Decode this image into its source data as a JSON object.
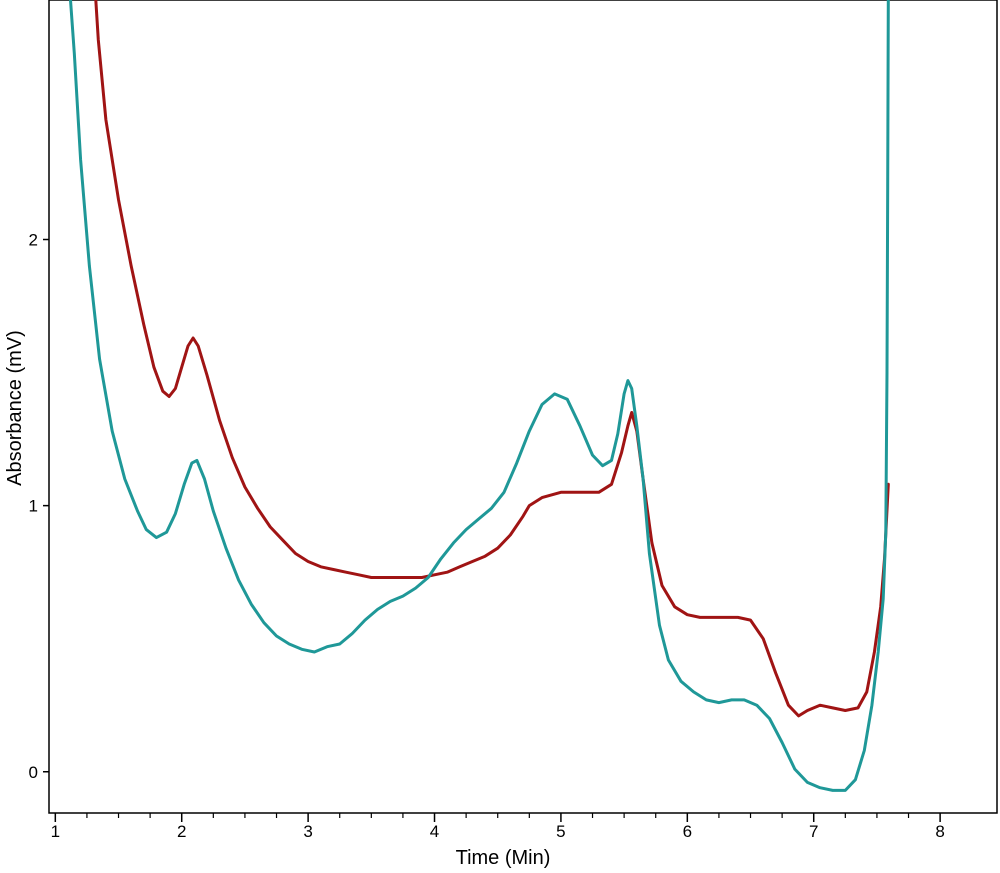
{
  "chart_data": {
    "type": "line",
    "title": "",
    "xlabel": "Time (Min)",
    "ylabel": "Absorbance (mV)",
    "xlim": [
      0.95,
      8.45
    ],
    "ylim": [
      -0.155,
      2.9
    ],
    "x_ticks": [
      1,
      2,
      3,
      4,
      5,
      6,
      7,
      8
    ],
    "y_ticks": [
      0,
      1,
      2
    ],
    "minor_x_step": 0.25,
    "grid": false,
    "legend": "none",
    "series": [
      {
        "color": "#a01414",
        "points": [
          [
            1.32,
            2.9
          ],
          [
            1.34,
            2.75
          ],
          [
            1.4,
            2.45
          ],
          [
            1.5,
            2.15
          ],
          [
            1.6,
            1.9
          ],
          [
            1.7,
            1.68
          ],
          [
            1.78,
            1.52
          ],
          [
            1.85,
            1.43
          ],
          [
            1.9,
            1.41
          ],
          [
            1.95,
            1.44
          ],
          [
            2.0,
            1.52
          ],
          [
            2.05,
            1.6
          ],
          [
            2.09,
            1.63
          ],
          [
            2.13,
            1.6
          ],
          [
            2.2,
            1.49
          ],
          [
            2.3,
            1.32
          ],
          [
            2.4,
            1.18
          ],
          [
            2.5,
            1.07
          ],
          [
            2.6,
            0.99
          ],
          [
            2.7,
            0.92
          ],
          [
            2.8,
            0.87
          ],
          [
            2.9,
            0.82
          ],
          [
            3.0,
            0.79
          ],
          [
            3.1,
            0.77
          ],
          [
            3.2,
            0.76
          ],
          [
            3.3,
            0.75
          ],
          [
            3.4,
            0.74
          ],
          [
            3.5,
            0.73
          ],
          [
            3.6,
            0.73
          ],
          [
            3.7,
            0.73
          ],
          [
            3.8,
            0.73
          ],
          [
            3.9,
            0.73
          ],
          [
            4.0,
            0.74
          ],
          [
            4.1,
            0.75
          ],
          [
            4.2,
            0.77
          ],
          [
            4.3,
            0.79
          ],
          [
            4.4,
            0.81
          ],
          [
            4.5,
            0.84
          ],
          [
            4.6,
            0.89
          ],
          [
            4.7,
            0.96
          ],
          [
            4.75,
            1.0
          ],
          [
            4.85,
            1.03
          ],
          [
            5.0,
            1.05
          ],
          [
            5.1,
            1.05
          ],
          [
            5.2,
            1.05
          ],
          [
            5.3,
            1.05
          ],
          [
            5.4,
            1.08
          ],
          [
            5.48,
            1.2
          ],
          [
            5.53,
            1.3
          ],
          [
            5.56,
            1.35
          ],
          [
            5.6,
            1.28
          ],
          [
            5.65,
            1.1
          ],
          [
            5.72,
            0.86
          ],
          [
            5.8,
            0.7
          ],
          [
            5.9,
            0.62
          ],
          [
            6.0,
            0.59
          ],
          [
            6.1,
            0.58
          ],
          [
            6.2,
            0.58
          ],
          [
            6.3,
            0.58
          ],
          [
            6.4,
            0.58
          ],
          [
            6.5,
            0.57
          ],
          [
            6.6,
            0.5
          ],
          [
            6.7,
            0.37
          ],
          [
            6.8,
            0.25
          ],
          [
            6.88,
            0.21
          ],
          [
            6.95,
            0.23
          ],
          [
            7.05,
            0.25
          ],
          [
            7.15,
            0.24
          ],
          [
            7.25,
            0.23
          ],
          [
            7.35,
            0.24
          ],
          [
            7.42,
            0.3
          ],
          [
            7.48,
            0.45
          ],
          [
            7.53,
            0.62
          ],
          [
            7.56,
            0.8
          ],
          [
            7.59,
            1.08
          ]
        ]
      },
      {
        "color": "#1f9898",
        "points": [
          [
            1.12,
            2.9
          ],
          [
            1.15,
            2.7
          ],
          [
            1.2,
            2.3
          ],
          [
            1.27,
            1.9
          ],
          [
            1.35,
            1.55
          ],
          [
            1.45,
            1.28
          ],
          [
            1.55,
            1.1
          ],
          [
            1.65,
            0.98
          ],
          [
            1.72,
            0.91
          ],
          [
            1.8,
            0.88
          ],
          [
            1.88,
            0.9
          ],
          [
            1.95,
            0.97
          ],
          [
            2.02,
            1.08
          ],
          [
            2.08,
            1.16
          ],
          [
            2.12,
            1.17
          ],
          [
            2.18,
            1.1
          ],
          [
            2.25,
            0.98
          ],
          [
            2.35,
            0.84
          ],
          [
            2.45,
            0.72
          ],
          [
            2.55,
            0.63
          ],
          [
            2.65,
            0.56
          ],
          [
            2.75,
            0.51
          ],
          [
            2.85,
            0.48
          ],
          [
            2.95,
            0.46
          ],
          [
            3.05,
            0.45
          ],
          [
            3.15,
            0.47
          ],
          [
            3.25,
            0.48
          ],
          [
            3.35,
            0.52
          ],
          [
            3.45,
            0.57
          ],
          [
            3.55,
            0.61
          ],
          [
            3.65,
            0.64
          ],
          [
            3.75,
            0.66
          ],
          [
            3.85,
            0.69
          ],
          [
            3.95,
            0.73
          ],
          [
            4.05,
            0.8
          ],
          [
            4.15,
            0.86
          ],
          [
            4.25,
            0.91
          ],
          [
            4.35,
            0.95
          ],
          [
            4.45,
            0.99
          ],
          [
            4.55,
            1.05
          ],
          [
            4.65,
            1.16
          ],
          [
            4.75,
            1.28
          ],
          [
            4.85,
            1.38
          ],
          [
            4.95,
            1.42
          ],
          [
            5.05,
            1.4
          ],
          [
            5.15,
            1.3
          ],
          [
            5.25,
            1.19
          ],
          [
            5.33,
            1.15
          ],
          [
            5.4,
            1.17
          ],
          [
            5.45,
            1.27
          ],
          [
            5.5,
            1.42
          ],
          [
            5.53,
            1.47
          ],
          [
            5.56,
            1.44
          ],
          [
            5.6,
            1.3
          ],
          [
            5.65,
            1.1
          ],
          [
            5.7,
            0.82
          ],
          [
            5.78,
            0.55
          ],
          [
            5.85,
            0.42
          ],
          [
            5.95,
            0.34
          ],
          [
            6.05,
            0.3
          ],
          [
            6.15,
            0.27
          ],
          [
            6.25,
            0.26
          ],
          [
            6.35,
            0.27
          ],
          [
            6.45,
            0.27
          ],
          [
            6.55,
            0.25
          ],
          [
            6.65,
            0.2
          ],
          [
            6.75,
            0.11
          ],
          [
            6.85,
            0.01
          ],
          [
            6.95,
            -0.04
          ],
          [
            7.05,
            -0.06
          ],
          [
            7.15,
            -0.07
          ],
          [
            7.25,
            -0.07
          ],
          [
            7.33,
            -0.03
          ],
          [
            7.4,
            0.08
          ],
          [
            7.46,
            0.25
          ],
          [
            7.51,
            0.45
          ],
          [
            7.55,
            0.65
          ],
          [
            7.57,
            0.9
          ],
          [
            7.58,
            1.5
          ],
          [
            7.585,
            2.2
          ],
          [
            7.59,
            2.9
          ]
        ]
      }
    ]
  }
}
